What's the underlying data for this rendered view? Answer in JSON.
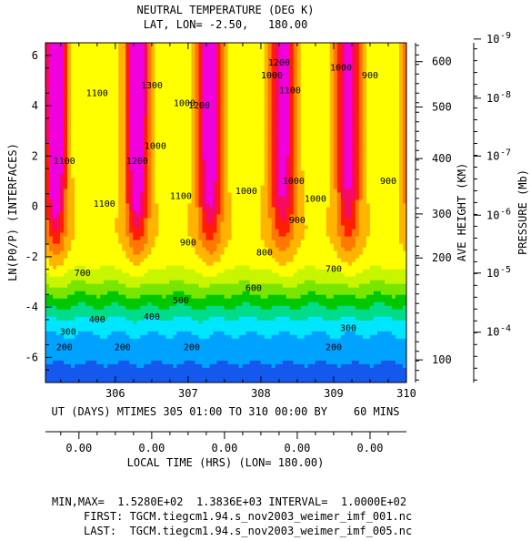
{
  "chart_data": {
    "type": "heatmap",
    "title": "NEUTRAL TEMPERATURE (DEG K)",
    "subtitle": "LAT, LON= -2.50,   180.00",
    "ylabel": "LN(P0/P) (INTERFACES)",
    "xlabel": "UT (DAYS) MTIMES 305 01:00 TO 310 00:00 BY    60 MINS",
    "xlabel2": "LOCAL TIME (HRS) (LON= 180.00)",
    "right_label_height": "AVE HEIGHT (KM)",
    "right_label_pressure": "PRESSURE (Mb)",
    "x_range": [
      305.04,
      310.0
    ],
    "y_range": [
      -7,
      6.5
    ],
    "x_ticks": [
      "306",
      "307",
      "308",
      "309",
      "310"
    ],
    "x_tick_values": [
      306,
      307,
      308,
      309,
      310
    ],
    "y_ticks": [
      "-6",
      "-4",
      "-2",
      "0",
      "2",
      "4",
      "6"
    ],
    "y_tick_values": [
      -6,
      -4,
      -2,
      0,
      2,
      4,
      6
    ],
    "local_time_ticks": [
      "0.00",
      "0.00",
      "0.00",
      "0.00",
      "0.00"
    ],
    "local_time_tick_x": [
      305.5,
      306.5,
      307.5,
      308.5,
      309.5
    ],
    "height_ticks": [
      "100",
      "200",
      "300",
      "400",
      "500",
      "600"
    ],
    "height_tick_y": [
      -6.1,
      -2.05,
      -0.3,
      1.9,
      3.95,
      5.75
    ],
    "pressure_ticks": [
      "10",
      "10",
      "10",
      "10",
      "10",
      "10"
    ],
    "pressure_exponents": [
      "-4",
      "-5",
      "-6",
      "-7",
      "-8",
      "-9"
    ],
    "pressure_tick_y": [
      -5.0,
      -2.65,
      -0.35,
      2.0,
      4.3,
      6.65
    ],
    "contour_interval": 100,
    "levels": [
      200,
      300,
      400,
      500,
      600,
      700,
      800,
      900,
      1000,
      1100,
      1200,
      1300
    ],
    "fill_colors": [
      "#1458ee",
      "#00a2ff",
      "#00e6ff",
      "#00dc8c",
      "#00c800",
      "#78e600",
      "#c8f500",
      "#ffff00",
      "#ffb400",
      "#ff7800",
      "#ff1e00",
      "#f50a64",
      "#f000dc"
    ],
    "contour_labels": [
      {
        "text": "200",
        "x": 305.3,
        "y": -5.6
      },
      {
        "text": "200",
        "x": 306.1,
        "y": -5.6
      },
      {
        "text": "200",
        "x": 307.05,
        "y": -5.6
      },
      {
        "text": "200",
        "x": 309.0,
        "y": -5.6
      },
      {
        "text": "300",
        "x": 305.35,
        "y": -5.0
      },
      {
        "text": "300",
        "x": 309.2,
        "y": -4.85
      },
      {
        "text": "400",
        "x": 305.75,
        "y": -4.5
      },
      {
        "text": "400",
        "x": 306.5,
        "y": -4.4
      },
      {
        "text": "500",
        "x": 306.9,
        "y": -3.75
      },
      {
        "text": "600",
        "x": 307.9,
        "y": -3.25
      },
      {
        "text": "700",
        "x": 305.55,
        "y": -2.65
      },
      {
        "text": "700",
        "x": 309.0,
        "y": -2.5
      },
      {
        "text": "800",
        "x": 308.05,
        "y": -1.85
      },
      {
        "text": "900",
        "x": 307.0,
        "y": -1.45
      },
      {
        "text": "900",
        "x": 308.5,
        "y": -0.55
      },
      {
        "text": "900",
        "x": 309.5,
        "y": 5.2
      },
      {
        "text": "900",
        "x": 309.75,
        "y": 1.0
      },
      {
        "text": "1000",
        "x": 306.55,
        "y": 2.4
      },
      {
        "text": "1000",
        "x": 306.95,
        "y": 4.1
      },
      {
        "text": "1000",
        "x": 307.8,
        "y": 0.6
      },
      {
        "text": "1000",
        "x": 308.45,
        "y": 1.0
      },
      {
        "text": "1000",
        "x": 308.75,
        "y": 0.3
      },
      {
        "text": "1000",
        "x": 308.15,
        "y": 5.2
      },
      {
        "text": "1000",
        "x": 309.1,
        "y": 5.5
      },
      {
        "text": "1100",
        "x": 305.3,
        "y": 1.8
      },
      {
        "text": "1100",
        "x": 305.85,
        "y": 0.1
      },
      {
        "text": "1100",
        "x": 306.9,
        "y": 0.4
      },
      {
        "text": "1100",
        "x": 305.75,
        "y": 4.5
      },
      {
        "text": "1100",
        "x": 308.4,
        "y": 4.6
      },
      {
        "text": "1200",
        "x": 306.3,
        "y": 1.8
      },
      {
        "text": "1200",
        "x": 307.15,
        "y": 4.0
      },
      {
        "text": "1200",
        "x": 308.25,
        "y": 5.7
      },
      {
        "text": "1300",
        "x": 306.5,
        "y": 4.8
      }
    ]
  },
  "footer": {
    "minmax": "MIN,MAX=  1.5280E+02  1.3836E+03 INTERVAL=  1.0000E+02",
    "first": "FIRST: TGCM.tiegcm1.94.s_nov2003_weimer_imf_001.nc",
    "last": "LAST:  TGCM.tiegcm1.94.s_nov2003_weimer_imf_005.nc"
  }
}
